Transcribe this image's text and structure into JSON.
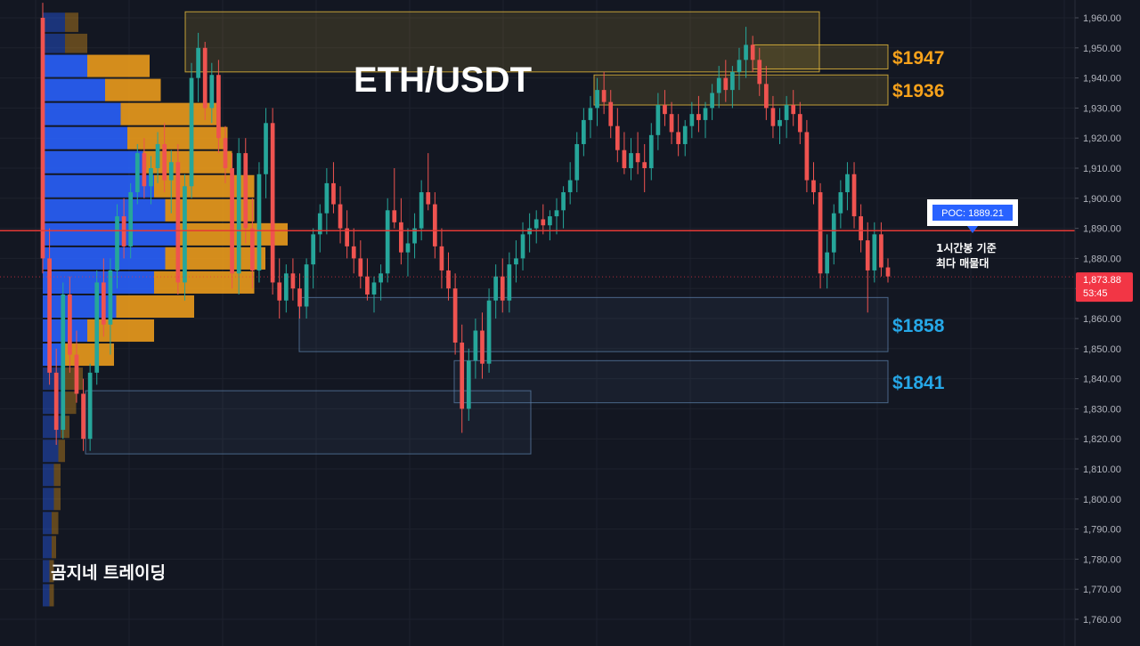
{
  "chart_data": {
    "type": "candlestick",
    "title": "ETH/USDT",
    "watermark": "곰지네 트레이딩",
    "ylim": [
      1752,
      1965
    ],
    "y_ticks": [
      "1,960.00",
      "1,950.00",
      "1,940.00",
      "1,930.00",
      "1,920.00",
      "1,910.00",
      "1,900.00",
      "1,890.00",
      "1,880.00",
      "1,870.00",
      "1,860.00",
      "1,850.00",
      "1,840.00",
      "1,830.00",
      "1,820.00",
      "1,810.00",
      "1,800.00",
      "1,790.00",
      "1,780.00",
      "1,770.00",
      "1,760.00"
    ],
    "y_tick_values": [
      1960,
      1950,
      1940,
      1930,
      1920,
      1910,
      1900,
      1890,
      1880,
      1870,
      1860,
      1850,
      1840,
      1830,
      1820,
      1810,
      1800,
      1790,
      1780,
      1770,
      1760
    ],
    "colors": {
      "background": "#131722",
      "up": "#26a69a",
      "down": "#ef5350",
      "grid": "#1e222d",
      "poc_line": "#e53935",
      "vp_up": "#2962ff",
      "vp_down": "#f7a21b",
      "resistance_zone": "#f9c93d",
      "support_zone": "#5b7fa8",
      "resistance_label": "#f7a21b",
      "support_label": "#26a8e8",
      "price_badge": "#f23645"
    },
    "poc": {
      "label": "POC: 1889.21",
      "value": 1889.21,
      "note_line1": "1시간봉 기준",
      "note_line2": "최다 매물대"
    },
    "current_price": {
      "value": 1873.88,
      "label": "1,873.88",
      "countdown": "53:45"
    },
    "zones": [
      {
        "kind": "resistance",
        "low": 1942,
        "high": 1962
      },
      {
        "kind": "resistance",
        "low": 1943,
        "high": 1951,
        "label": "$1947"
      },
      {
        "kind": "resistance",
        "low": 1931,
        "high": 1941,
        "label": "$1936"
      },
      {
        "kind": "support",
        "low": 1849,
        "high": 1867,
        "label": "$1858"
      },
      {
        "kind": "support",
        "low": 1832,
        "high": 1846,
        "label": "$1841"
      },
      {
        "kind": "support",
        "low": 1815,
        "high": 1836
      }
    ],
    "volume_profile": [
      {
        "low": 1955,
        "high": 1962,
        "up": 0.1,
        "down": 0.06
      },
      {
        "low": 1948,
        "high": 1955,
        "up": 0.1,
        "down": 0.1
      },
      {
        "low": 1940,
        "high": 1948,
        "up": 0.2,
        "down": 0.28
      },
      {
        "low": 1932,
        "high": 1940,
        "up": 0.28,
        "down": 0.25
      },
      {
        "low": 1924,
        "high": 1932,
        "up": 0.35,
        "down": 0.43
      },
      {
        "low": 1916,
        "high": 1924,
        "up": 0.38,
        "down": 0.45
      },
      {
        "low": 1908,
        "high": 1916,
        "up": 0.45,
        "down": 0.4
      },
      {
        "low": 1900,
        "high": 1908,
        "up": 0.5,
        "down": 0.45
      },
      {
        "low": 1892,
        "high": 1900,
        "up": 0.55,
        "down": 0.4
      },
      {
        "low": 1884,
        "high": 1892,
        "up": 0.6,
        "down": 0.5
      },
      {
        "low": 1876,
        "high": 1884,
        "up": 0.55,
        "down": 0.45
      },
      {
        "low": 1868,
        "high": 1876,
        "up": 0.5,
        "down": 0.45
      },
      {
        "low": 1860,
        "high": 1868,
        "up": 0.33,
        "down": 0.35
      },
      {
        "low": 1852,
        "high": 1860,
        "up": 0.2,
        "down": 0.3
      },
      {
        "low": 1844,
        "high": 1852,
        "up": 0.1,
        "down": 0.22
      },
      {
        "low": 1836,
        "high": 1844,
        "up": 0.1,
        "down": 0.08
      },
      {
        "low": 1828,
        "high": 1836,
        "up": 0.1,
        "down": 0.05
      },
      {
        "low": 1820,
        "high": 1828,
        "up": 0.08,
        "down": 0.04
      },
      {
        "low": 1812,
        "high": 1820,
        "up": 0.07,
        "down": 0.03
      },
      {
        "low": 1804,
        "high": 1812,
        "up": 0.05,
        "down": 0.03
      },
      {
        "low": 1796,
        "high": 1804,
        "up": 0.05,
        "down": 0.03
      },
      {
        "low": 1788,
        "high": 1796,
        "up": 0.04,
        "down": 0.03
      },
      {
        "low": 1780,
        "high": 1788,
        "up": 0.04,
        "down": 0.02
      },
      {
        "low": 1772,
        "high": 1780,
        "up": 0.03,
        "down": 0.02
      },
      {
        "low": 1764,
        "high": 1772,
        "up": 0.03,
        "down": 0.02
      }
    ],
    "candles": [
      [
        1960,
        1965,
        1875,
        1880
      ],
      [
        1880,
        1890,
        1838,
        1842
      ],
      [
        1842,
        1850,
        1818,
        1823
      ],
      [
        1823,
        1872,
        1820,
        1868
      ],
      [
        1868,
        1874,
        1842,
        1848
      ],
      [
        1848,
        1856,
        1832,
        1835
      ],
      [
        1835,
        1840,
        1816,
        1820
      ],
      [
        1820,
        1845,
        1816,
        1842
      ],
      [
        1842,
        1876,
        1838,
        1872
      ],
      [
        1872,
        1880,
        1854,
        1858
      ],
      [
        1858,
        1880,
        1848,
        1876
      ],
      [
        1876,
        1898,
        1870,
        1894
      ],
      [
        1894,
        1900,
        1880,
        1884
      ],
      [
        1884,
        1905,
        1880,
        1902
      ],
      [
        1902,
        1918,
        1898,
        1915
      ],
      [
        1915,
        1920,
        1900,
        1904
      ],
      [
        1904,
        1914,
        1898,
        1910
      ],
      [
        1910,
        1922,
        1905,
        1918
      ],
      [
        1918,
        1925,
        1902,
        1906
      ],
      [
        1906,
        1916,
        1895,
        1912
      ],
      [
        1912,
        1918,
        1868,
        1872
      ],
      [
        1872,
        1908,
        1866,
        1904
      ],
      [
        1904,
        1945,
        1900,
        1940
      ],
      [
        1940,
        1955,
        1932,
        1950
      ],
      [
        1950,
        1952,
        1926,
        1930
      ],
      [
        1930,
        1945,
        1925,
        1941
      ],
      [
        1941,
        1946,
        1915,
        1920
      ],
      [
        1920,
        1924,
        1905,
        1910
      ],
      [
        1910,
        1915,
        1870,
        1875
      ],
      [
        1875,
        1920,
        1868,
        1915
      ],
      [
        1915,
        1920,
        1885,
        1890
      ],
      [
        1890,
        1900,
        1870,
        1876
      ],
      [
        1876,
        1912,
        1872,
        1908
      ],
      [
        1908,
        1930,
        1900,
        1925
      ],
      [
        1925,
        1930,
        1868,
        1872
      ],
      [
        1872,
        1880,
        1860,
        1866
      ],
      [
        1866,
        1878,
        1862,
        1875
      ],
      [
        1875,
        1880,
        1866,
        1870
      ],
      [
        1870,
        1875,
        1860,
        1864
      ],
      [
        1864,
        1880,
        1860,
        1878
      ],
      [
        1878,
        1890,
        1870,
        1888
      ],
      [
        1888,
        1898,
        1882,
        1895
      ],
      [
        1895,
        1910,
        1888,
        1905
      ],
      [
        1905,
        1912,
        1895,
        1898
      ],
      [
        1898,
        1904,
        1885,
        1890
      ],
      [
        1890,
        1896,
        1880,
        1884
      ],
      [
        1884,
        1890,
        1875,
        1880
      ],
      [
        1880,
        1886,
        1870,
        1874
      ],
      [
        1874,
        1880,
        1866,
        1868
      ],
      [
        1868,
        1874,
        1862,
        1872
      ],
      [
        1872,
        1878,
        1866,
        1875
      ],
      [
        1875,
        1900,
        1872,
        1896
      ],
      [
        1896,
        1910,
        1890,
        1892
      ],
      [
        1892,
        1900,
        1878,
        1882
      ],
      [
        1882,
        1890,
        1874,
        1885
      ],
      [
        1885,
        1895,
        1880,
        1890
      ],
      [
        1890,
        1906,
        1886,
        1902
      ],
      [
        1902,
        1915,
        1896,
        1898
      ],
      [
        1898,
        1902,
        1880,
        1884
      ],
      [
        1884,
        1890,
        1870,
        1876
      ],
      [
        1876,
        1882,
        1866,
        1870
      ],
      [
        1870,
        1875,
        1848,
        1852
      ],
      [
        1852,
        1858,
        1822,
        1830
      ],
      [
        1830,
        1850,
        1826,
        1846
      ],
      [
        1846,
        1860,
        1840,
        1856
      ],
      [
        1856,
        1862,
        1840,
        1845
      ],
      [
        1845,
        1870,
        1842,
        1866
      ],
      [
        1866,
        1878,
        1860,
        1874
      ],
      [
        1874,
        1880,
        1862,
        1866
      ],
      [
        1866,
        1882,
        1862,
        1878
      ],
      [
        1878,
        1886,
        1872,
        1880
      ],
      [
        1880,
        1892,
        1876,
        1888
      ],
      [
        1888,
        1895,
        1882,
        1890
      ],
      [
        1890,
        1896,
        1885,
        1893
      ],
      [
        1893,
        1898,
        1888,
        1891
      ],
      [
        1891,
        1896,
        1886,
        1894
      ],
      [
        1894,
        1900,
        1888,
        1896
      ],
      [
        1896,
        1904,
        1890,
        1902
      ],
      [
        1902,
        1912,
        1898,
        1906
      ],
      [
        1906,
        1922,
        1902,
        1918
      ],
      [
        1918,
        1930,
        1914,
        1926
      ],
      [
        1926,
        1934,
        1920,
        1930
      ],
      [
        1930,
        1940,
        1924,
        1936
      ],
      [
        1936,
        1942,
        1928,
        1932
      ],
      [
        1932,
        1936,
        1920,
        1924
      ],
      [
        1924,
        1930,
        1912,
        1916
      ],
      [
        1916,
        1922,
        1908,
        1910
      ],
      [
        1910,
        1920,
        1906,
        1915
      ],
      [
        1915,
        1922,
        1908,
        1912
      ],
      [
        1912,
        1918,
        1902,
        1910
      ],
      [
        1910,
        1925,
        1906,
        1921
      ],
      [
        1921,
        1935,
        1916,
        1931
      ],
      [
        1931,
        1936,
        1924,
        1928
      ],
      [
        1928,
        1932,
        1918,
        1922
      ],
      [
        1922,
        1928,
        1914,
        1918
      ],
      [
        1918,
        1926,
        1914,
        1924
      ],
      [
        1924,
        1932,
        1920,
        1928
      ],
      [
        1928,
        1934,
        1922,
        1926
      ],
      [
        1926,
        1932,
        1920,
        1930
      ],
      [
        1930,
        1938,
        1926,
        1935
      ],
      [
        1935,
        1944,
        1930,
        1940
      ],
      [
        1940,
        1946,
        1932,
        1936
      ],
      [
        1936,
        1944,
        1930,
        1942
      ],
      [
        1942,
        1950,
        1936,
        1946
      ],
      [
        1946,
        1957,
        1940,
        1951
      ],
      [
        1951,
        1954,
        1942,
        1946
      ],
      [
        1946,
        1950,
        1934,
        1938
      ],
      [
        1938,
        1944,
        1926,
        1930
      ],
      [
        1930,
        1934,
        1920,
        1924
      ],
      [
        1924,
        1930,
        1918,
        1926
      ],
      [
        1926,
        1934,
        1920,
        1931
      ],
      [
        1931,
        1936,
        1924,
        1928
      ],
      [
        1928,
        1932,
        1918,
        1922
      ],
      [
        1922,
        1926,
        1902,
        1906
      ],
      [
        1906,
        1912,
        1898,
        1902
      ],
      [
        1902,
        1905,
        1870,
        1875
      ],
      [
        1875,
        1888,
        1870,
        1882
      ],
      [
        1882,
        1898,
        1878,
        1895
      ],
      [
        1895,
        1906,
        1890,
        1902
      ],
      [
        1902,
        1912,
        1896,
        1908
      ],
      [
        1908,
        1912,
        1890,
        1894
      ],
      [
        1894,
        1898,
        1882,
        1886
      ],
      [
        1886,
        1892,
        1862,
        1876
      ],
      [
        1876,
        1892,
        1872,
        1888
      ],
      [
        1888,
        1892,
        1874,
        1877
      ],
      [
        1877,
        1880,
        1872,
        1874
      ]
    ]
  }
}
